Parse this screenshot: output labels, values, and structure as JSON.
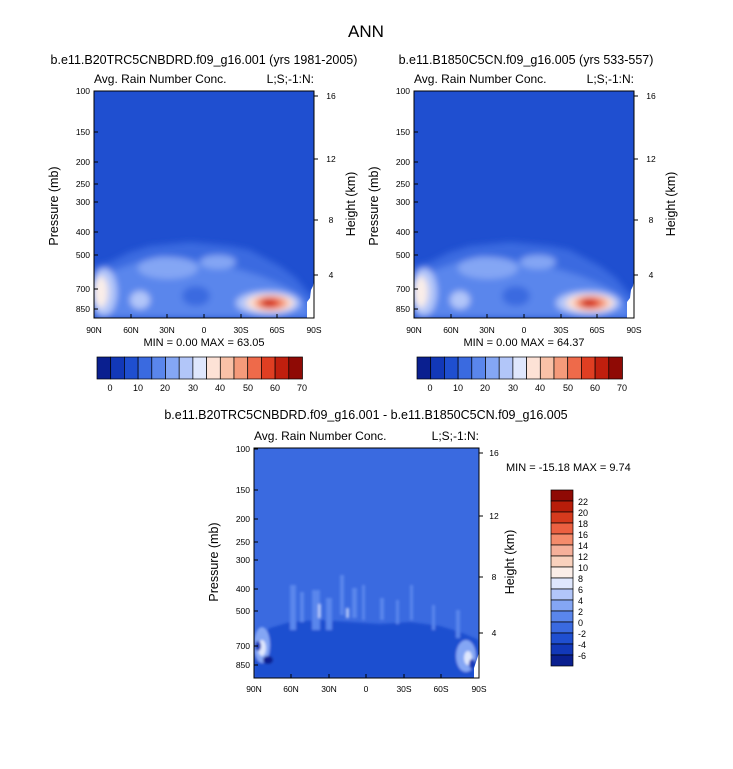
{
  "figure_title": "ANN",
  "colors": {
    "background": "#1f4fd0",
    "model_palette": [
      "#0a1f8f",
      "#1238b8",
      "#1f4fd0",
      "#3a6ae0",
      "#5a86ec",
      "#84a6f4",
      "#b2c6f9",
      "#dfe7fd",
      "#fde2d6",
      "#f9c1a7",
      "#f59a7a",
      "#ee6a4a",
      "#e03e22",
      "#c01f0e",
      "#8f0a05"
    ],
    "diff_palette": [
      "#0a1f8f",
      "#1238b8",
      "#1f4fd0",
      "#3a6ae0",
      "#5a86ec",
      "#84a6f4",
      "#b2c6f9",
      "#dfe7fd",
      "#fbeee8",
      "#f9d1bd",
      "#f6b09a",
      "#f58b6b",
      "#ec6041",
      "#d63a1d",
      "#b81d0a",
      "#8f0a05"
    ]
  },
  "chart_data": [
    {
      "type": "heatmap",
      "title": "b.e11.B20TRC5CNBDRD.f09_g16.001 (yrs 1981-2005)",
      "left_label": "Avg. Rain Number Conc.",
      "right_label": "L;S;-1:N:",
      "xlabel": "",
      "ylabel": "Pressure (mb)",
      "y2label": "Height (km)",
      "x_ticks": [
        "90N",
        "60N",
        "30N",
        "0",
        "30S",
        "60S",
        "90S"
      ],
      "y_ticks": [
        "100",
        "150",
        "200",
        "250",
        "300",
        "400",
        "500",
        "700",
        "850"
      ],
      "y2_ticks": [
        "16",
        "12",
        "8",
        "4"
      ],
      "min_max_text": "MIN =  0.00  MAX = 63.05",
      "min": 0.0,
      "max": 63.05,
      "colorbar_labels": [
        "0",
        "10",
        "20",
        "30",
        "40",
        "50",
        "60",
        "70"
      ],
      "colorbar_orientation": "horizontal",
      "mountain_edge": "90S"
    },
    {
      "type": "heatmap",
      "title": "b.e11.B1850C5CN.f09_g16.005 (yrs 533-557)",
      "left_label": "Avg. Rain Number Conc.",
      "right_label": "L;S;-1:N:",
      "xlabel": "",
      "ylabel": "Pressure (mb)",
      "y2label": "Height (km)",
      "x_ticks": [
        "90N",
        "60N",
        "30N",
        "0",
        "30S",
        "60S",
        "90S"
      ],
      "y_ticks": [
        "100",
        "150",
        "200",
        "250",
        "300",
        "400",
        "500",
        "700",
        "850"
      ],
      "y2_ticks": [
        "16",
        "12",
        "8",
        "4"
      ],
      "min_max_text": "MIN =  0.00  MAX = 64.37",
      "min": 0.0,
      "max": 64.37,
      "colorbar_labels": [
        "0",
        "10",
        "20",
        "30",
        "40",
        "50",
        "60",
        "70"
      ],
      "colorbar_orientation": "horizontal",
      "mountain_edge": "90S"
    },
    {
      "type": "heatmap",
      "title": "b.e11.B20TRC5CNBDRD.f09_g16.001 - b.e11.B1850C5CN.f09_g16.005",
      "left_label": "Avg. Rain Number Conc.",
      "right_label": "L;S;-1:N:",
      "xlabel": "",
      "ylabel": "Pressure (mb)",
      "y2label": "Height (km)",
      "x_ticks": [
        "90N",
        "60N",
        "30N",
        "0",
        "30S",
        "60S",
        "90S"
      ],
      "y_ticks": [
        "100",
        "150",
        "200",
        "250",
        "300",
        "400",
        "500",
        "700",
        "850"
      ],
      "y2_ticks": [
        "16",
        "12",
        "8",
        "4"
      ],
      "min_max_text": "MIN = -15.18  MAX =  9.74",
      "min": -15.18,
      "max": 9.74,
      "colorbar_labels": [
        "22",
        "20",
        "18",
        "16",
        "14",
        "12",
        "10",
        "8",
        "6",
        "4",
        "2",
        "0",
        "-2",
        "-4",
        "-6"
      ],
      "colorbar_orientation": "vertical"
    }
  ]
}
